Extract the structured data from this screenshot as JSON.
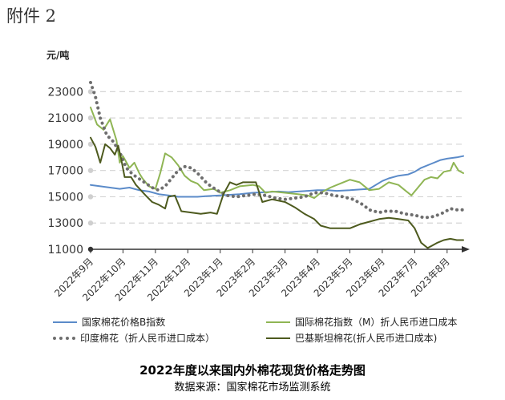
{
  "header_label": "附件 2",
  "chart_data": {
    "type": "line",
    "ylabel": "元/吨",
    "ylim": [
      11000,
      24000
    ],
    "yticks": [
      11000,
      13000,
      15000,
      17000,
      19000,
      21000,
      23000
    ],
    "ytick_labels": [
      "11000",
      "13000",
      "15000",
      "17000",
      "19000",
      "21000",
      "23000"
    ],
    "grid": true,
    "x_range": [
      0,
      11.5
    ],
    "x_tick_positions": [
      0,
      1,
      2,
      3,
      4,
      5,
      6,
      7,
      8,
      9,
      10,
      11
    ],
    "x_tick_labels": [
      "2022年9月",
      "2022年10月",
      "2022年11月",
      "2022年12月",
      "2023年1月",
      "2023年2月",
      "2023年3月",
      "2023年4月",
      "2023年5月",
      "2023年6月",
      "2023年7月",
      "2023年8月"
    ],
    "legend_position": "bottom",
    "series": [
      {
        "name": "国家棉花价格B指数",
        "color": "#5b8bc9",
        "style": "solid",
        "points": [
          [
            0,
            15900
          ],
          [
            0.3,
            15800
          ],
          [
            0.6,
            15700
          ],
          [
            0.9,
            15600
          ],
          [
            1.2,
            15700
          ],
          [
            1.5,
            15500
          ],
          [
            1.8,
            15400
          ],
          [
            2.1,
            15200
          ],
          [
            2.4,
            15100
          ],
          [
            2.7,
            15000
          ],
          [
            3.0,
            15000
          ],
          [
            3.3,
            15000
          ],
          [
            3.6,
            15050
          ],
          [
            4.0,
            15100
          ],
          [
            4.3,
            15150
          ],
          [
            4.6,
            15200
          ],
          [
            5.0,
            15300
          ],
          [
            5.4,
            15350
          ],
          [
            5.8,
            15400
          ],
          [
            6.1,
            15350
          ],
          [
            6.4,
            15400
          ],
          [
            6.7,
            15450
          ],
          [
            7.0,
            15500
          ],
          [
            7.3,
            15500
          ],
          [
            7.6,
            15450
          ],
          [
            8.0,
            15500
          ],
          [
            8.3,
            15550
          ],
          [
            8.6,
            15600
          ],
          [
            9.0,
            16200
          ],
          [
            9.2,
            16400
          ],
          [
            9.5,
            16600
          ],
          [
            9.8,
            16700
          ],
          [
            10.0,
            16900
          ],
          [
            10.2,
            17200
          ],
          [
            10.5,
            17500
          ],
          [
            10.8,
            17800
          ],
          [
            11.0,
            17900
          ],
          [
            11.3,
            18000
          ],
          [
            11.5,
            18100
          ]
        ]
      },
      {
        "name": "国际棉花指数（M）折人民币进口成本",
        "color": "#8fb554",
        "style": "solid",
        "points": [
          [
            0,
            21800
          ],
          [
            0.2,
            20500
          ],
          [
            0.4,
            20100
          ],
          [
            0.6,
            20900
          ],
          [
            0.8,
            19300
          ],
          [
            0.9,
            17600
          ],
          [
            1.0,
            18100
          ],
          [
            1.2,
            17200
          ],
          [
            1.35,
            17600
          ],
          [
            1.5,
            16800
          ],
          [
            1.6,
            16400
          ],
          [
            1.8,
            15800
          ],
          [
            2.0,
            15600
          ],
          [
            2.15,
            16800
          ],
          [
            2.3,
            18300
          ],
          [
            2.5,
            18000
          ],
          [
            2.7,
            17400
          ],
          [
            2.9,
            16600
          ],
          [
            3.1,
            16200
          ],
          [
            3.3,
            16000
          ],
          [
            3.5,
            15500
          ],
          [
            3.8,
            15600
          ],
          [
            4.0,
            15300
          ],
          [
            4.3,
            15500
          ],
          [
            4.6,
            15800
          ],
          [
            5.0,
            15900
          ],
          [
            5.2,
            15800
          ],
          [
            5.4,
            15300
          ],
          [
            5.6,
            15400
          ],
          [
            6.0,
            15300
          ],
          [
            6.4,
            15200
          ],
          [
            6.7,
            15100
          ],
          [
            6.9,
            14900
          ],
          [
            7.1,
            15300
          ],
          [
            7.4,
            15700
          ],
          [
            7.7,
            16000
          ],
          [
            8.0,
            16300
          ],
          [
            8.3,
            16100
          ],
          [
            8.6,
            15500
          ],
          [
            8.9,
            15600
          ],
          [
            9.2,
            16100
          ],
          [
            9.5,
            15900
          ],
          [
            9.7,
            15500
          ],
          [
            9.9,
            15100
          ],
          [
            10.1,
            15700
          ],
          [
            10.3,
            16300
          ],
          [
            10.5,
            16500
          ],
          [
            10.7,
            16400
          ],
          [
            10.9,
            16900
          ],
          [
            11.1,
            17000
          ],
          [
            11.2,
            17600
          ],
          [
            11.35,
            17000
          ],
          [
            11.5,
            16800
          ]
        ]
      },
      {
        "name": "印度棉花（折人民币进口成本）",
        "color": "#6e6e6e",
        "style": "dotted",
        "points": [
          [
            0,
            23700
          ],
          [
            0.15,
            22600
          ],
          [
            0.3,
            21000
          ],
          [
            0.5,
            19700
          ],
          [
            0.7,
            19200
          ],
          [
            0.9,
            18400
          ],
          [
            1.1,
            17200
          ],
          [
            1.3,
            16700
          ],
          [
            1.6,
            16200
          ],
          [
            1.9,
            15700
          ],
          [
            2.1,
            15500
          ],
          [
            2.3,
            15800
          ],
          [
            2.5,
            16400
          ],
          [
            2.7,
            17000
          ],
          [
            2.9,
            17300
          ],
          [
            3.1,
            17200
          ],
          [
            3.3,
            16800
          ],
          [
            3.6,
            16000
          ],
          [
            3.9,
            15500
          ],
          [
            4.2,
            15100
          ],
          [
            4.5,
            15000
          ],
          [
            4.8,
            15100
          ],
          [
            5.1,
            15200
          ],
          [
            5.4,
            15100
          ],
          [
            5.7,
            14900
          ],
          [
            6.0,
            14800
          ],
          [
            6.3,
            14900
          ],
          [
            6.6,
            15000
          ],
          [
            6.9,
            15300
          ],
          [
            7.2,
            15300
          ],
          [
            7.5,
            15100
          ],
          [
            7.8,
            15000
          ],
          [
            8.1,
            14800
          ],
          [
            8.4,
            14400
          ],
          [
            8.6,
            14000
          ],
          [
            8.9,
            13800
          ],
          [
            9.1,
            13900
          ],
          [
            9.4,
            13900
          ],
          [
            9.7,
            13700
          ],
          [
            10.0,
            13600
          ],
          [
            10.3,
            13400
          ],
          [
            10.6,
            13500
          ],
          [
            10.9,
            13800
          ],
          [
            11.1,
            14100
          ],
          [
            11.3,
            14000
          ],
          [
            11.5,
            14000
          ]
        ]
      },
      {
        "name": "巴基斯坦棉花(折人民币进口成本)",
        "color": "#4d5a1e",
        "style": "solid",
        "points": [
          [
            0,
            19500
          ],
          [
            0.15,
            18800
          ],
          [
            0.3,
            17600
          ],
          [
            0.45,
            19000
          ],
          [
            0.6,
            18700
          ],
          [
            0.75,
            18200
          ],
          [
            0.85,
            18900
          ],
          [
            0.95,
            17800
          ],
          [
            1.05,
            16500
          ],
          [
            1.25,
            16500
          ],
          [
            1.4,
            15900
          ],
          [
            1.7,
            15100
          ],
          [
            1.9,
            14600
          ],
          [
            2.1,
            14400
          ],
          [
            2.3,
            14100
          ],
          [
            2.4,
            15000
          ],
          [
            2.6,
            15100
          ],
          [
            2.8,
            13900
          ],
          [
            3.1,
            13800
          ],
          [
            3.4,
            13700
          ],
          [
            3.7,
            13800
          ],
          [
            3.9,
            13700
          ],
          [
            4.1,
            15200
          ],
          [
            4.3,
            16100
          ],
          [
            4.5,
            15900
          ],
          [
            4.7,
            16100
          ],
          [
            5.1,
            16100
          ],
          [
            5.3,
            14600
          ],
          [
            5.6,
            14800
          ],
          [
            6.0,
            14600
          ],
          [
            6.3,
            14200
          ],
          [
            6.6,
            13700
          ],
          [
            6.9,
            13300
          ],
          [
            7.1,
            12800
          ],
          [
            7.4,
            12600
          ],
          [
            7.7,
            12600
          ],
          [
            8.0,
            12600
          ],
          [
            8.3,
            12900
          ],
          [
            8.6,
            13100
          ],
          [
            8.9,
            13300
          ],
          [
            9.2,
            13400
          ],
          [
            9.5,
            13300
          ],
          [
            9.8,
            13200
          ],
          [
            10.0,
            12600
          ],
          [
            10.2,
            11500
          ],
          [
            10.4,
            11100
          ],
          [
            10.55,
            11300
          ],
          [
            10.7,
            11500
          ],
          [
            10.9,
            11700
          ],
          [
            11.1,
            11800
          ],
          [
            11.3,
            11700
          ],
          [
            11.5,
            11700
          ]
        ]
      }
    ]
  },
  "legend": [
    {
      "label": "国家棉花价格B指数",
      "color": "#5b8bc9",
      "style": "solid"
    },
    {
      "label": "国际棉花指数（M）折人民币进口成本",
      "color": "#8fb554",
      "style": "solid"
    },
    {
      "label": "印度棉花（折人民币进口成本）",
      "color": "#6e6e6e",
      "style": "dotted"
    },
    {
      "label": "巴基斯坦棉花(折人民币进口成本)",
      "color": "#4d5a1e",
      "style": "solid"
    }
  ],
  "footer": {
    "title": "2022年度以来国内外棉花现货价格走势图",
    "source": "数据来源：国家棉花市场监测系统"
  }
}
